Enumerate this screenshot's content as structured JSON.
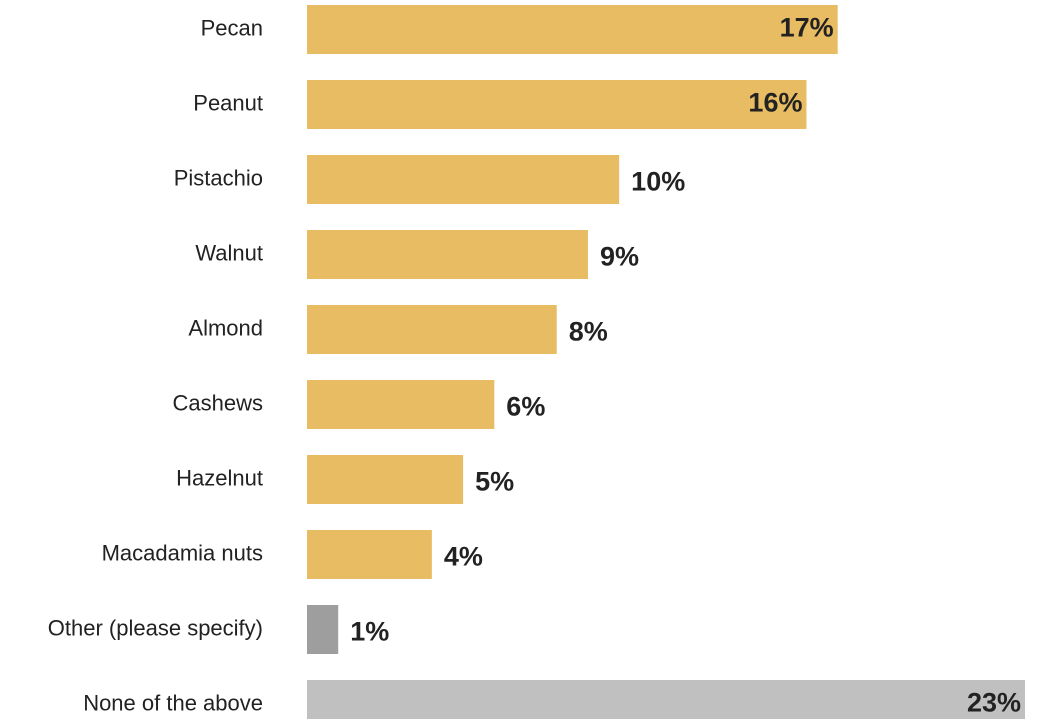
{
  "chart_data": {
    "type": "bar",
    "orientation": "horizontal",
    "categories": [
      "Pecan",
      "Peanut",
      "Pistachio",
      "Walnut",
      "Almond",
      "Cashews",
      "Hazelnut",
      "Macadamia nuts",
      "Other (please specify)",
      "None of the above"
    ],
    "values": [
      17,
      16,
      10,
      9,
      8,
      6,
      5,
      4,
      1,
      23
    ],
    "value_labels": [
      "17%",
      "16%",
      "10%",
      "9%",
      "8%",
      "6%",
      "5%",
      "4%",
      "1%",
      "23%"
    ],
    "colors": [
      "#e8bc62",
      "#e8bc62",
      "#e8bc62",
      "#e8bc62",
      "#e8bc62",
      "#e8bc62",
      "#e8bc62",
      "#e8bc62",
      "#9e9e9e",
      "#c0c0c0"
    ],
    "title": "",
    "xlabel": "",
    "ylabel": "",
    "xlim": [
      0,
      23
    ],
    "grid": false,
    "legend": "none"
  }
}
